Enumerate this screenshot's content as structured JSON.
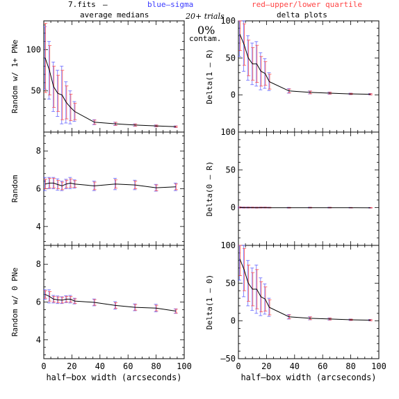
{
  "header": {
    "file": "7.fits",
    "dash": "–",
    "blue_label": "blue–sigma",
    "red_label": "red–upper/lower quartile",
    "left_title": "average medians",
    "trials": "20+ trials",
    "right_title": "delta plots",
    "contam_pct": "0%",
    "contam_word": "contam."
  },
  "colors": {
    "line": "#000000",
    "sigma": "#6060ff",
    "quartile": "#ff4a4a",
    "blue_text": "#3a3aff",
    "red_text": "#ff4444",
    "axis": "#000000"
  },
  "chart_data": [
    {
      "type": "line",
      "panel": "top-left",
      "ylabel": "Random w/ 1+ PNe",
      "xlim": [
        0,
        100
      ],
      "ylim": [
        0,
        135
      ],
      "yticks": [
        50,
        100
      ],
      "ytick_labels": [
        "50",
        "100"
      ],
      "x": [
        1,
        4,
        7,
        10,
        13,
        16,
        19,
        22,
        36,
        51,
        65,
        80,
        94
      ],
      "y": [
        90,
        75,
        55,
        47,
        45,
        36,
        30,
        25,
        12,
        10,
        8.5,
        7.5,
        6.5
      ],
      "err": [
        38,
        35,
        30,
        28,
        35,
        25,
        20,
        12,
        3,
        2,
        1.5,
        1.2,
        1
      ],
      "qerr": [
        42,
        30,
        25,
        22,
        30,
        20,
        16,
        10,
        2.5,
        1.8,
        1.3,
        1,
        0.8
      ]
    },
    {
      "type": "line",
      "panel": "top-right",
      "ylabel": "Delta(1 – R)",
      "xlim": [
        0,
        100
      ],
      "ylim": [
        -50,
        100
      ],
      "yticks": [
        0,
        50,
        100
      ],
      "ytick_labels": [
        "0",
        "50",
        "100"
      ],
      "x": [
        1,
        4,
        7,
        10,
        13,
        16,
        19,
        22,
        36,
        51,
        65,
        80,
        94
      ],
      "y": [
        82,
        68,
        50,
        42,
        42,
        32,
        29,
        18,
        5.5,
        3.5,
        2.5,
        1.5,
        1
      ],
      "err": [
        30,
        36,
        30,
        28,
        30,
        25,
        20,
        12,
        3,
        2,
        1.5,
        1,
        1
      ],
      "qerr": [
        22,
        28,
        24,
        22,
        25,
        20,
        16,
        10,
        2.5,
        1.8,
        1.2,
        0.8,
        0.8
      ]
    },
    {
      "type": "line",
      "panel": "mid-left",
      "ylabel": "Random",
      "xlim": [
        0,
        100
      ],
      "ylim": [
        3,
        9
      ],
      "yticks": [
        4,
        6,
        8
      ],
      "ytick_labels": [
        "4",
        "6",
        "8"
      ],
      "x": [
        1,
        4,
        7,
        10,
        13,
        16,
        19,
        22,
        36,
        51,
        65,
        80,
        94
      ],
      "y": [
        6.25,
        6.3,
        6.3,
        6.22,
        6.15,
        6.25,
        6.3,
        6.25,
        6.15,
        6.25,
        6.2,
        6.05,
        6.1
      ],
      "err": [
        0.35,
        0.3,
        0.3,
        0.3,
        0.25,
        0.25,
        0.3,
        0.22,
        0.25,
        0.3,
        0.25,
        0.18,
        0.2
      ],
      "qerr": [
        0.25,
        0.25,
        0.25,
        0.22,
        0.2,
        0.2,
        0.22,
        0.18,
        0.2,
        0.22,
        0.2,
        0.15,
        0.15
      ]
    },
    {
      "type": "line",
      "panel": "mid-right",
      "ylabel": "Delta(0 – R)",
      "xlim": [
        0,
        100
      ],
      "ylim": [
        -50,
        100
      ],
      "yticks": [
        0,
        50,
        100
      ],
      "ytick_labels": [
        "0",
        "50",
        "100"
      ],
      "x": [
        1,
        4,
        7,
        10,
        13,
        16,
        19,
        22,
        36,
        51,
        65,
        80,
        94
      ],
      "y": [
        0.2,
        0.1,
        0.1,
        0.1,
        0.0,
        0.1,
        0.1,
        0.0,
        -0.1,
        0.0,
        0.0,
        -0.1,
        -0.2
      ],
      "err": [
        0.8,
        0.7,
        0.7,
        0.6,
        0.6,
        0.6,
        0.6,
        0.5,
        0.5,
        0.5,
        0.5,
        0.4,
        0.4
      ],
      "qerr": [
        0.6,
        0.5,
        0.5,
        0.5,
        0.5,
        0.5,
        0.5,
        0.4,
        0.4,
        0.4,
        0.4,
        0.3,
        0.3
      ]
    },
    {
      "type": "line",
      "panel": "bottom-left",
      "ylabel": "Random w/ 0 PNe",
      "xlabel": "half–box width (arcseconds)",
      "xlim": [
        0,
        100
      ],
      "ylim": [
        3,
        9
      ],
      "yticks": [
        4,
        6,
        8
      ],
      "ytick_labels": [
        "4",
        "6",
        "8"
      ],
      "xticks": [
        0,
        20,
        40,
        60,
        80,
        100
      ],
      "xtick_labels": [
        "0",
        "20",
        "40",
        "60",
        "80",
        "100"
      ],
      "x": [
        1,
        4,
        7,
        10,
        13,
        16,
        19,
        22,
        36,
        51,
        65,
        80,
        94
      ],
      "y": [
        6.4,
        6.3,
        6.15,
        6.12,
        6.1,
        6.15,
        6.15,
        6.05,
        5.98,
        5.82,
        5.72,
        5.68,
        5.52
      ],
      "err": [
        0.25,
        0.35,
        0.2,
        0.2,
        0.18,
        0.18,
        0.2,
        0.15,
        0.18,
        0.2,
        0.18,
        0.2,
        0.12
      ],
      "qerr": [
        0.2,
        0.25,
        0.15,
        0.15,
        0.15,
        0.15,
        0.15,
        0.12,
        0.15,
        0.15,
        0.15,
        0.15,
        0.1
      ]
    },
    {
      "type": "line",
      "panel": "bottom-right",
      "ylabel": "Delta(1 – 0)",
      "xlabel": "half–box width (arcseconds)",
      "xlim": [
        0,
        100
      ],
      "ylim": [
        -50,
        100
      ],
      "yticks": [
        -50,
        0,
        50,
        100
      ],
      "ytick_labels": [
        "–50",
        "0",
        "50",
        "100"
      ],
      "xticks": [
        0,
        20,
        40,
        60,
        80,
        100
      ],
      "xtick_labels": [
        "0",
        "20",
        "40",
        "60",
        "80",
        "100"
      ],
      "x": [
        1,
        4,
        7,
        10,
        13,
        16,
        19,
        22,
        36,
        51,
        65,
        80,
        94
      ],
      "y": [
        82,
        68,
        50,
        42,
        42,
        32,
        29,
        18,
        5.5,
        3.5,
        2.5,
        1.5,
        1
      ],
      "err": [
        28,
        36,
        30,
        28,
        32,
        25,
        20,
        12,
        3,
        2,
        1.5,
        1,
        1
      ],
      "qerr": [
        22,
        28,
        24,
        22,
        26,
        20,
        16,
        10,
        2.5,
        1.8,
        1.2,
        0.8,
        0.8
      ]
    }
  ]
}
